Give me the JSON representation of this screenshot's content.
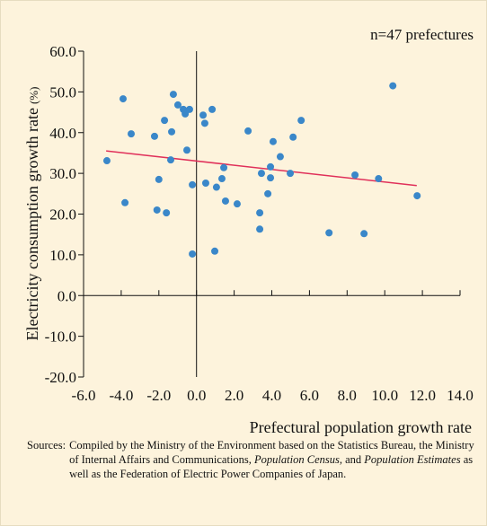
{
  "chart_data": {
    "type": "scatter",
    "title": "n=47 prefectures",
    "xlabel": "Prefectural population growth rate",
    "ylabel": "Electricity consumption growth rate",
    "ylabel_unit": "(%)",
    "color": "#3a87c9",
    "x": [
      -4.76,
      -3.9,
      -3.47,
      -3.8,
      -2.23,
      -2.0,
      -2.1,
      -1.7,
      -1.6,
      -1.37,
      -1.32,
      -1.23,
      -0.99,
      -0.7,
      -0.6,
      -0.51,
      -0.37,
      -0.22,
      -0.22,
      0.35,
      0.44,
      0.49,
      0.83,
      0.97,
      1.06,
      1.35,
      1.45,
      1.54,
      2.16,
      2.74,
      3.36,
      3.36,
      3.45,
      3.79,
      3.93,
      3.93,
      4.07,
      4.45,
      4.98,
      5.13,
      5.56,
      7.04,
      8.42,
      8.9,
      9.67,
      10.43,
      11.72
    ],
    "values": [
      33.1,
      48.3,
      39.7,
      22.8,
      39.1,
      28.5,
      21.0,
      43.0,
      20.3,
      33.3,
      40.2,
      49.4,
      46.8,
      45.7,
      44.6,
      35.7,
      45.7,
      27.2,
      10.2,
      44.3,
      42.3,
      27.6,
      45.7,
      10.9,
      26.6,
      28.7,
      31.4,
      23.2,
      22.5,
      40.4,
      20.3,
      16.3,
      30.0,
      25.0,
      31.6,
      28.9,
      37.8,
      34.1,
      30.0,
      38.9,
      43.0,
      15.4,
      29.6,
      15.2,
      28.7,
      51.5,
      24.5
    ],
    "trendline": {
      "color": "#e0305a",
      "x": [
        -4.8,
        11.7
      ],
      "y": [
        35.5,
        27.0
      ]
    },
    "xlim": [
      -6,
      14
    ],
    "ylim": [
      -20,
      60
    ],
    "xticks": [
      {
        "value": -6,
        "label": "-6.0"
      },
      {
        "value": -4,
        "label": "-4.0"
      },
      {
        "value": -2,
        "label": "-2.0"
      },
      {
        "value": 0,
        "label": "0.0"
      },
      {
        "value": 2,
        "label": "2.0"
      },
      {
        "value": 4,
        "label": "4.0"
      },
      {
        "value": 6,
        "label": "6.0"
      },
      {
        "value": 8,
        "label": "8.0"
      },
      {
        "value": 10,
        "label": "10.0"
      },
      {
        "value": 12,
        "label": "12.0"
      },
      {
        "value": 14,
        "label": "14.0"
      }
    ],
    "yticks": [
      {
        "value": -20,
        "label": "-20.0"
      },
      {
        "value": -10,
        "label": "-10.0"
      },
      {
        "value": 0,
        "label": "0.0"
      },
      {
        "value": 10,
        "label": "10.0"
      },
      {
        "value": 20,
        "label": "20.0"
      },
      {
        "value": 30,
        "label": "30.0"
      },
      {
        "value": 40,
        "label": "40.0"
      },
      {
        "value": 50,
        "label": "50.0"
      },
      {
        "value": 60,
        "label": "60.0"
      }
    ],
    "source": {
      "label": "Sources:",
      "parts": [
        {
          "text": "Compiled by the Ministry of the Environment based on the Statistics Bureau, the Ministry of Internal Affairs and Communications, ",
          "italic": false
        },
        {
          "text": "Population Census",
          "italic": true
        },
        {
          "text": ", and ",
          "italic": false
        },
        {
          "text": "Population Estimates",
          "italic": true
        },
        {
          "text": " as well as the Federation of Electric Power Companies of Japan.",
          "italic": false
        }
      ]
    }
  }
}
